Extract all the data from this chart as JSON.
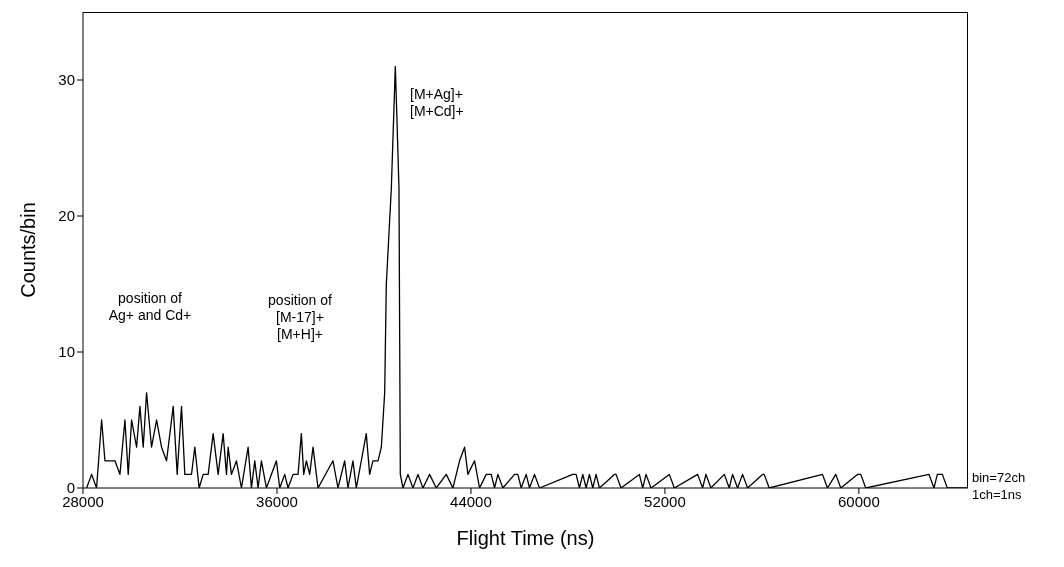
{
  "chart_data": {
    "type": "line",
    "xlabel": "Flight Time (ns)",
    "ylabel": "Counts/bin",
    "xlim": [
      28000,
      64500
    ],
    "ylim": [
      0,
      35
    ],
    "xticks": [
      28000,
      36000,
      44000,
      52000,
      60000
    ],
    "yticks": [
      0,
      10,
      20,
      30
    ],
    "marker": "none",
    "series": [
      {
        "color": "#000000",
        "x": [
          28150,
          28356,
          28560,
          28768,
          28905,
          29317,
          29523,
          29729,
          29866,
          30004,
          30210,
          30347,
          30484,
          30622,
          30827,
          31034,
          31240,
          31445,
          31583,
          31720,
          31885,
          32063,
          32200,
          32475,
          32612,
          32790,
          32956,
          33162,
          33368,
          33574,
          33780,
          33917,
          33986,
          34123,
          34329,
          34535,
          34810,
          34947,
          35084,
          35221,
          35358,
          35565,
          35976,
          36113,
          36320,
          36457,
          36663,
          36869,
          37006,
          37102,
          37212,
          37350,
          37487,
          37693,
          38310,
          38516,
          38791,
          38928,
          39134,
          39272,
          39683,
          39821,
          39958,
          40167,
          40304,
          40442,
          40510,
          40716,
          40881,
          40950,
          41032,
          41087,
          41197,
          41403,
          41609,
          41815,
          42021,
          42295,
          42570,
          42982,
          43256,
          43531,
          43737,
          43874,
          44149,
          44355,
          44630,
          44836,
          44974,
          45111,
          45317,
          45798,
          45935,
          46072,
          46278,
          46415,
          46621,
          46827,
          48200,
          48338,
          48475,
          48612,
          48750,
          48887,
          49024,
          49162,
          49299,
          49917,
          49985,
          50191,
          50946,
          51084,
          51221,
          51427,
          52182,
          52388,
          53349,
          53555,
          53692,
          53898,
          54448,
          54654,
          54791,
          54997,
          55203,
          55409,
          56027,
          56095,
          56301,
          58498,
          58704,
          59047,
          59253,
          59940,
          60077,
          60283,
          62892,
          63098,
          63235,
          63441,
          63647,
          64470
        ],
        "values": [
          0,
          1,
          0,
          5,
          2,
          2,
          1,
          5,
          1,
          5,
          3,
          6,
          3,
          7,
          3,
          5,
          3,
          2,
          4,
          6,
          1,
          6,
          1,
          1,
          3,
          0,
          1,
          1,
          4,
          1,
          4,
          1,
          3,
          1,
          2,
          0,
          3,
          0,
          2,
          0,
          2,
          0,
          2,
          0,
          1,
          0,
          1,
          1,
          4,
          1,
          2,
          1,
          3,
          0,
          2,
          0,
          2,
          0,
          2,
          0,
          4,
          1,
          2,
          2,
          3,
          7,
          15,
          22,
          31,
          27,
          22,
          1,
          0,
          1,
          0,
          1,
          0,
          1,
          0,
          1,
          0,
          2,
          3,
          1,
          2,
          0,
          1,
          1,
          0,
          1,
          0,
          1,
          1,
          0,
          1,
          0,
          1,
          0,
          1,
          1,
          0,
          1,
          0,
          1,
          0,
          1,
          0,
          1,
          1,
          0,
          1,
          0,
          1,
          0,
          1,
          0,
          1,
          0,
          1,
          0,
          1,
          0,
          1,
          0,
          1,
          0,
          1,
          1,
          0,
          1,
          0,
          1,
          0,
          1,
          1,
          0,
          1,
          0,
          1,
          1,
          0,
          0
        ]
      }
    ],
    "annotations": [
      "position of\nAg+ and Cd+",
      "position of\n[M-17]+\n[M+H]+",
      "[M+Ag]+\n[M+Cd]+",
      "bin=72ch",
      "1ch=1ns"
    ]
  }
}
